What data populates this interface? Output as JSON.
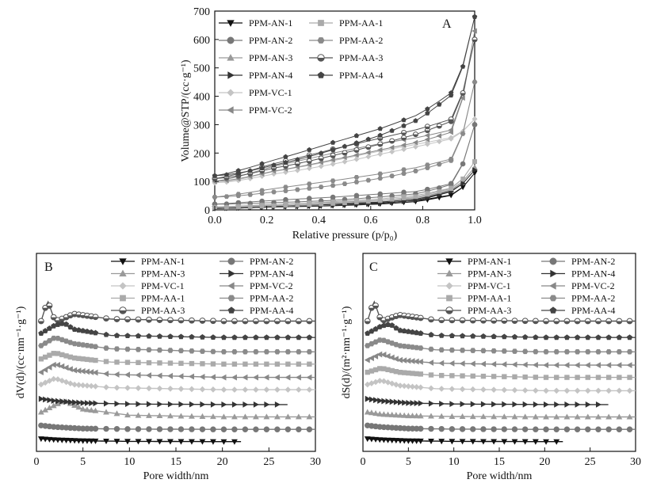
{
  "chart_data": [
    {
      "panel": "A",
      "type": "line",
      "xlabel": "Relative pressure (p/p₀)",
      "ylabel": "Volume@STP/(cc·g⁻¹)",
      "xlim": [
        0,
        1.0
      ],
      "ylim": [
        0,
        700
      ],
      "xticks": [
        "0.0",
        "0.2",
        "0.4",
        "0.6",
        "0.8",
        "1.0"
      ],
      "yticks": [
        "0",
        "100",
        "200",
        "300",
        "400",
        "500",
        "600",
        "700"
      ],
      "legend_position": "top-left",
      "series": [
        {
          "name": "PPM-AN-1",
          "color": "#111111",
          "marker": "triangle-down",
          "x": [
            0.0,
            0.1,
            0.3,
            0.5,
            0.7,
            0.9,
            1.0
          ],
          "y": [
            5,
            10,
            14,
            20,
            30,
            55,
            130
          ]
        },
        {
          "name": "PPM-AN-2",
          "color": "#777777",
          "marker": "circle",
          "x": [
            0.0,
            0.1,
            0.3,
            0.5,
            0.7,
            0.9,
            1.0
          ],
          "y": [
            20,
            25,
            33,
            45,
            58,
            95,
            300
          ]
        },
        {
          "name": "PPM-AN-3",
          "color": "#9a9a9a",
          "marker": "triangle-up",
          "x": [
            0.0,
            0.1,
            0.3,
            0.5,
            0.7,
            0.9,
            1.0
          ],
          "y": [
            10,
            15,
            20,
            28,
            40,
            75,
            150
          ]
        },
        {
          "name": "PPM-AN-4",
          "color": "#333333",
          "marker": "triangle-right",
          "x": [
            0.0,
            0.1,
            0.3,
            0.5,
            0.7,
            0.9,
            1.0
          ],
          "y": [
            5,
            10,
            15,
            22,
            35,
            70,
            140
          ]
        },
        {
          "name": "PPM-VC-1",
          "color": "#c4c4c4",
          "marker": "diamond",
          "x": [
            0.0,
            0.1,
            0.3,
            0.5,
            0.7,
            0.9,
            1.0
          ],
          "y": [
            95,
            125,
            160,
            195,
            225,
            255,
            320
          ]
        },
        {
          "name": "PPM-VC-2",
          "color": "#888888",
          "marker": "triangle-left",
          "x": [
            0.0,
            0.1,
            0.3,
            0.5,
            0.7,
            0.9,
            1.0
          ],
          "y": [
            100,
            135,
            175,
            210,
            240,
            280,
            630
          ]
        },
        {
          "name": "PPM-AA-1",
          "color": "#aaaaaa",
          "marker": "square",
          "x": [
            0.0,
            0.1,
            0.3,
            0.5,
            0.7,
            0.9,
            1.0
          ],
          "y": [
            8,
            14,
            22,
            32,
            48,
            80,
            170
          ]
        },
        {
          "name": "PPM-AA-2",
          "color": "#8a8a8a",
          "marker": "hexagon",
          "x": [
            0.0,
            0.1,
            0.3,
            0.5,
            0.7,
            0.9,
            1.0
          ],
          "y": [
            45,
            62,
            85,
            110,
            140,
            180,
            450
          ]
        },
        {
          "name": "PPM-AA-3",
          "color": "#555555",
          "marker": "circle-half",
          "x": [
            0.0,
            0.1,
            0.3,
            0.5,
            0.7,
            0.9,
            1.0
          ],
          "y": [
            110,
            145,
            190,
            230,
            270,
            320,
            600
          ]
        },
        {
          "name": "PPM-AA-4",
          "color": "#444444",
          "marker": "pentagon",
          "x": [
            0.0,
            0.1,
            0.3,
            0.5,
            0.7,
            0.9,
            1.0
          ],
          "y": [
            120,
            155,
            210,
            260,
            320,
            420,
            680
          ]
        }
      ]
    },
    {
      "panel": "B",
      "type": "line",
      "xlabel": "Pore width/nm",
      "ylabel": "dV(d)/(cc·nm⁻¹·g⁻¹)",
      "xlim": [
        0,
        30
      ],
      "xticks": [
        "0",
        "5",
        "10",
        "15",
        "20",
        "25",
        "30"
      ],
      "legend_position": "top",
      "series": [
        {
          "name": "PPM-AN-1",
          "color": "#111111",
          "marker": "triangle-down",
          "offset_level": 0,
          "x_end": 22,
          "x": [
            0.5,
            2,
            5,
            10,
            20
          ],
          "y": [
            0.3,
            0.2,
            0.1,
            0.05,
            0.02
          ]
        },
        {
          "name": "PPM-AN-2",
          "color": "#777777",
          "marker": "circle",
          "offset_level": 1,
          "x_end": 30,
          "x": [
            0.5,
            2,
            5,
            10,
            20
          ],
          "y": [
            0.4,
            0.25,
            0.1,
            0.05,
            0.02
          ]
        },
        {
          "name": "PPM-AN-3",
          "color": "#9a9a9a",
          "marker": "triangle-up",
          "offset_level": 2,
          "x_end": 30,
          "x": [
            0.5,
            2,
            3,
            5,
            10,
            20
          ],
          "y": [
            0.5,
            1.2,
            1.6,
            0.8,
            0.2,
            0.05
          ]
        },
        {
          "name": "PPM-AN-4",
          "color": "#333333",
          "marker": "triangle-right",
          "offset_level": 3,
          "x_end": 27,
          "x": [
            0.5,
            2,
            5,
            10,
            20
          ],
          "y": [
            0.6,
            0.4,
            0.2,
            0.1,
            0.05
          ]
        },
        {
          "name": "PPM-VC-1",
          "color": "#c4c4c4",
          "marker": "diamond",
          "offset_level": 4,
          "x_end": 30,
          "x": [
            0.5,
            2,
            4,
            8,
            20
          ],
          "y": [
            0.8,
            1.4,
            0.8,
            0.5,
            0.3
          ]
        },
        {
          "name": "PPM-VC-2",
          "color": "#888888",
          "marker": "triangle-left",
          "offset_level": 5,
          "x_end": 30,
          "x": [
            0.5,
            2,
            4,
            8,
            20
          ],
          "y": [
            0.8,
            1.6,
            1.0,
            0.6,
            0.3
          ]
        },
        {
          "name": "PPM-AA-1",
          "color": "#aaaaaa",
          "marker": "square",
          "offset_level": 6,
          "x_end": 30,
          "x": [
            0.5,
            2,
            4,
            8,
            20
          ],
          "y": [
            0.9,
            1.5,
            1.0,
            0.6,
            0.4
          ]
        },
        {
          "name": "PPM-AA-2",
          "color": "#8a8a8a",
          "marker": "hexagon",
          "offset_level": 7,
          "x_end": 30,
          "x": [
            0.5,
            2,
            4,
            8,
            20
          ],
          "y": [
            1.0,
            1.8,
            1.2,
            0.7,
            0.4
          ]
        },
        {
          "name": "PPM-AA-3",
          "color": "#555555",
          "marker": "circle-half",
          "offset_level": 9,
          "x_end": 30,
          "x": [
            0.5,
            1.2,
            2,
            3,
            4,
            8,
            20
          ],
          "y": [
            1.0,
            3.0,
            1.0,
            1.3,
            1.7,
            1.2,
            1.0
          ]
        },
        {
          "name": "PPM-AA-4",
          "color": "#444444",
          "marker": "pentagon",
          "offset_level": 8,
          "x_end": 30,
          "x": [
            0.5,
            2,
            3,
            4,
            8,
            20
          ],
          "y": [
            1.0,
            1.8,
            2.0,
            1.4,
            0.8,
            0.6
          ]
        }
      ]
    },
    {
      "panel": "C",
      "type": "line",
      "xlabel": "Pore width/nm",
      "ylabel": "dS(d)/(m²·nm⁻¹·g⁻¹)",
      "xlim": [
        0,
        30
      ],
      "xticks": [
        "0",
        "5",
        "10",
        "15",
        "20",
        "25",
        "30"
      ],
      "legend_position": "top",
      "series": [
        {
          "name": "PPM-AN-1",
          "color": "#111111",
          "marker": "triangle-down",
          "offset_level": 0,
          "x_end": 22,
          "x": [
            0.5,
            2,
            5,
            10,
            20
          ],
          "y": [
            0.3,
            0.2,
            0.1,
            0.05,
            0.02
          ]
        },
        {
          "name": "PPM-AN-2",
          "color": "#777777",
          "marker": "circle",
          "offset_level": 1,
          "x_end": 30,
          "x": [
            0.5,
            2,
            5,
            10,
            20
          ],
          "y": [
            0.4,
            0.25,
            0.1,
            0.05,
            0.02
          ]
        },
        {
          "name": "PPM-AN-3",
          "color": "#9a9a9a",
          "marker": "triangle-up",
          "offset_level": 2,
          "x_end": 30,
          "x": [
            0.5,
            2,
            5,
            10,
            20
          ],
          "y": [
            0.5,
            0.3,
            0.15,
            0.08,
            0.04
          ]
        },
        {
          "name": "PPM-AN-4",
          "color": "#333333",
          "marker": "triangle-right",
          "offset_level": 3,
          "x_end": 27,
          "x": [
            0.5,
            2,
            5,
            10,
            20
          ],
          "y": [
            0.6,
            0.4,
            0.2,
            0.1,
            0.05
          ]
        },
        {
          "name": "PPM-VC-1",
          "color": "#c4c4c4",
          "marker": "diamond",
          "offset_level": 4,
          "x_end": 30,
          "x": [
            0.5,
            2,
            4,
            8,
            20
          ],
          "y": [
            0.8,
            1.2,
            0.7,
            0.4,
            0.2
          ]
        },
        {
          "name": "PPM-VC-2",
          "color": "#888888",
          "marker": "triangle-left",
          "offset_level": 6,
          "x_end": 30,
          "x": [
            0.5,
            2,
            4,
            8,
            20
          ],
          "y": [
            0.8,
            1.4,
            0.8,
            0.5,
            0.3
          ]
        },
        {
          "name": "PPM-AA-1",
          "color": "#aaaaaa",
          "marker": "square",
          "offset_level": 5,
          "x_end": 30,
          "x": [
            0.5,
            2,
            4,
            8,
            20
          ],
          "y": [
            0.8,
            1.2,
            0.8,
            0.5,
            0.3
          ]
        },
        {
          "name": "PPM-AA-2",
          "color": "#8a8a8a",
          "marker": "hexagon",
          "offset_level": 7,
          "x_end": 30,
          "x": [
            0.5,
            2,
            4,
            8,
            20
          ],
          "y": [
            1.0,
            1.6,
            1.0,
            0.6,
            0.4
          ]
        },
        {
          "name": "PPM-AA-3",
          "color": "#555555",
          "marker": "circle-half",
          "offset_level": 9,
          "x_end": 30,
          "x": [
            0.5,
            1.2,
            2,
            3,
            4,
            8,
            20
          ],
          "y": [
            1.0,
            3.0,
            1.0,
            1.3,
            1.6,
            1.1,
            1.0
          ]
        },
        {
          "name": "PPM-AA-4",
          "color": "#444444",
          "marker": "pentagon",
          "offset_level": 8,
          "x_end": 30,
          "x": [
            0.5,
            2,
            3,
            4,
            8,
            20
          ],
          "y": [
            1.0,
            1.7,
            1.9,
            1.3,
            0.8,
            0.6
          ]
        }
      ]
    }
  ]
}
